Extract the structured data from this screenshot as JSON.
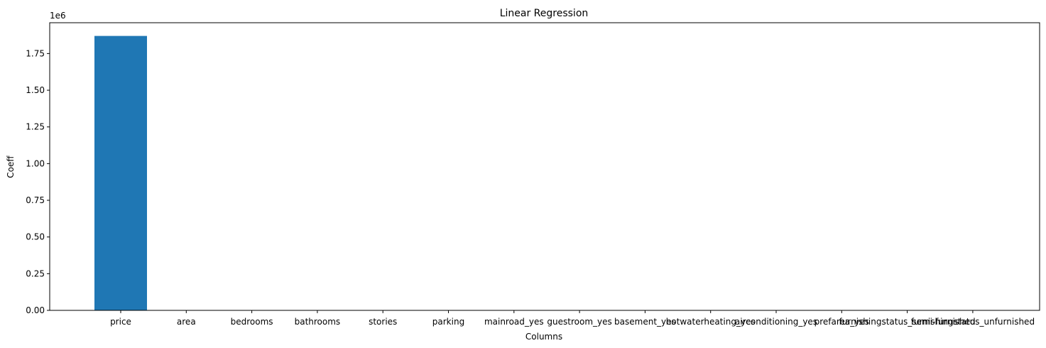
{
  "chart_data": {
    "type": "bar",
    "title": "Linear Regression",
    "xlabel": "Columns",
    "ylabel": "Coeff",
    "y_offset_label": "1e6",
    "y_scale_factor": 1000000,
    "categories": [
      "price",
      "area",
      "bedrooms",
      "bathrooms",
      "stories",
      "parking",
      "mainroad_yes",
      "guestroom_yes",
      "basement_yes",
      "hotwaterheating_yes",
      "airconditioning_yes",
      "prefarea_yes",
      "furnishingstatus_semi-furnished",
      "furnishingstatus_unfurnished"
    ],
    "values": [
      1870000,
      0,
      0,
      0,
      0,
      0,
      0,
      0,
      0,
      0,
      0,
      0,
      0,
      0
    ],
    "ylim": [
      0,
      1960000
    ],
    "yticks": [
      0,
      250000,
      500000,
      750000,
      1000000,
      1250000,
      1500000,
      1750000
    ],
    "ytick_labels": [
      "0.00",
      "0.25",
      "0.50",
      "0.75",
      "1.00",
      "1.25",
      "1.50",
      "1.75"
    ],
    "bar_color": "#1f77b4",
    "grid": false,
    "legend": "none"
  }
}
